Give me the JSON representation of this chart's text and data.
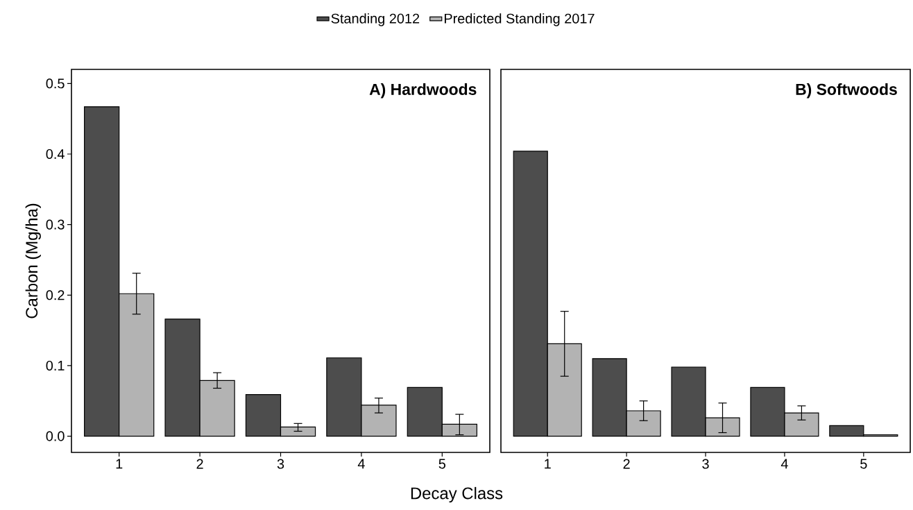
{
  "chart_data": [
    {
      "type": "bar",
      "title": "A) Hardwoods",
      "xlabel": "Decay Class",
      "ylabel": "Carbon (Mg/ha)",
      "categories": [
        "1",
        "2",
        "3",
        "4",
        "5"
      ],
      "legend": "top",
      "ylim": [
        -0.023,
        0.52
      ],
      "yticks": [
        {
          "value": 0,
          "label": "0.0"
        },
        0.1,
        0.2,
        0.3,
        0.4,
        0.5
      ],
      "grid": false,
      "series": [
        {
          "name": "Standing 2012",
          "color": "#4d4d4d",
          "values": [
            0.467,
            0.166,
            0.059,
            0.111,
            0.069
          ]
        },
        {
          "name": "Predicted Standing 2017",
          "color": "#b3b3b3",
          "values": [
            0.202,
            0.079,
            0.013,
            0.044,
            0.017
          ],
          "errors": [
            [
              0.173,
              0.231
            ],
            [
              0.068,
              0.09
            ],
            [
              0.007,
              0.018
            ],
            [
              0.033,
              0.054
            ],
            [
              0.002,
              0.031
            ]
          ]
        }
      ]
    },
    {
      "type": "bar",
      "title": "B) Softwoods",
      "categories": [
        "1",
        "2",
        "3",
        "4",
        "5"
      ],
      "tick_labels": "x",
      "ylim": [
        -0.023,
        0.52
      ],
      "yticks": [
        0,
        0.1,
        0.2,
        0.3,
        0.4,
        0.5
      ],
      "grid": false,
      "series": [
        {
          "color": "#4d4d4d",
          "values": [
            0.404,
            0.11,
            0.098,
            0.069,
            0.015
          ]
        },
        {
          "color": "#b3b3b3",
          "values": [
            0.131,
            0.036,
            0.026,
            0.033,
            0.002
          ],
          "errors": [
            [
              0.085,
              0.177
            ],
            [
              0.022,
              0.05
            ],
            [
              0.005,
              0.047
            ],
            [
              0.023,
              0.043
            ],
            null
          ]
        }
      ]
    }
  ]
}
